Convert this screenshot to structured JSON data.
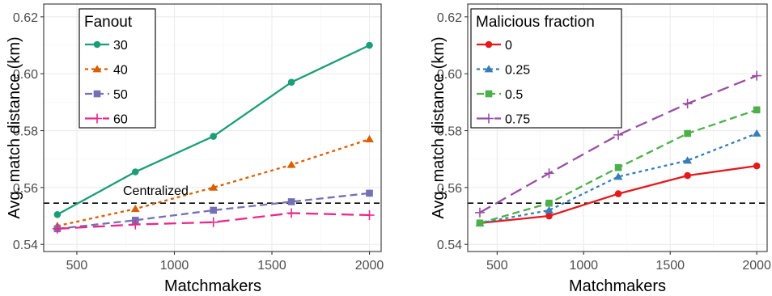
{
  "chart_data": [
    {
      "type": "line",
      "xlabel": "Matchmakers",
      "ylabel": "Avg. match distance (km)",
      "xlim": [
        330,
        2060
      ],
      "ylim": [
        0.5375,
        0.6245
      ],
      "xticks": [
        500,
        1000,
        1500,
        2000
      ],
      "yticks": [
        0.54,
        0.56,
        0.58,
        0.6,
        0.62
      ],
      "ytick_labels": [
        "0.54",
        "0.56",
        "0.58",
        "0.60",
        "0.62"
      ],
      "grid": true,
      "legend": {
        "title": "Fanout",
        "position": "top-left"
      },
      "x": [
        400,
        800,
        1200,
        1600,
        2000
      ],
      "reference_line": {
        "value": 0.5545,
        "label": "Centralized",
        "style": "dashed"
      },
      "series": [
        {
          "name": "30",
          "values": [
            0.5505,
            0.5655,
            0.578,
            0.597,
            0.61
          ],
          "color": "#1b9e77",
          "marker": "circle",
          "dash": "solid"
        },
        {
          "name": "40",
          "values": [
            0.5465,
            0.5525,
            0.56,
            0.568,
            0.577
          ],
          "color": "#d95f02",
          "marker": "triangle",
          "dash": "dotted"
        },
        {
          "name": "50",
          "values": [
            0.5455,
            0.5485,
            0.552,
            0.555,
            0.558
          ],
          "color": "#7570b3",
          "marker": "square",
          "dash": "dashed"
        },
        {
          "name": "60",
          "values": [
            0.5455,
            0.547,
            0.5478,
            0.551,
            0.5503
          ],
          "color": "#e7298a",
          "marker": "plus",
          "dash": "longdash"
        }
      ]
    },
    {
      "type": "line",
      "xlabel": "Matchmakers",
      "ylabel": "Avg. match distance (km)",
      "xlim": [
        330,
        2060
      ],
      "ylim": [
        0.5375,
        0.6245
      ],
      "xticks": [
        500,
        1000,
        1500,
        2000
      ],
      "yticks": [
        0.54,
        0.56,
        0.58,
        0.6,
        0.62
      ],
      "ytick_labels": [
        "0.54",
        "0.56",
        "0.58",
        "0.60",
        "0.62"
      ],
      "grid": true,
      "legend": {
        "title": "Malicious fraction",
        "position": "top-left"
      },
      "x": [
        400,
        800,
        1200,
        1600,
        2000
      ],
      "reference_line": {
        "value": 0.5545,
        "style": "dashed"
      },
      "series": [
        {
          "name": "0",
          "values": [
            0.5475,
            0.55,
            0.5578,
            0.5642,
            0.5676
          ],
          "color": "#e41a1c",
          "marker": "circle",
          "dash": "solid"
        },
        {
          "name": "0.25",
          "values": [
            0.5475,
            0.552,
            0.5638,
            0.5695,
            0.579
          ],
          "color": "#377eb8",
          "marker": "triangle",
          "dash": "dotted"
        },
        {
          "name": "0.5",
          "values": [
            0.5475,
            0.5545,
            0.567,
            0.579,
            0.5873
          ],
          "color": "#4daf4a",
          "marker": "square",
          "dash": "dashed"
        },
        {
          "name": "0.75",
          "values": [
            0.5512,
            0.565,
            0.5785,
            0.5895,
            0.5993
          ],
          "color": "#984ea3",
          "marker": "plus",
          "dash": "longdash"
        }
      ]
    }
  ]
}
